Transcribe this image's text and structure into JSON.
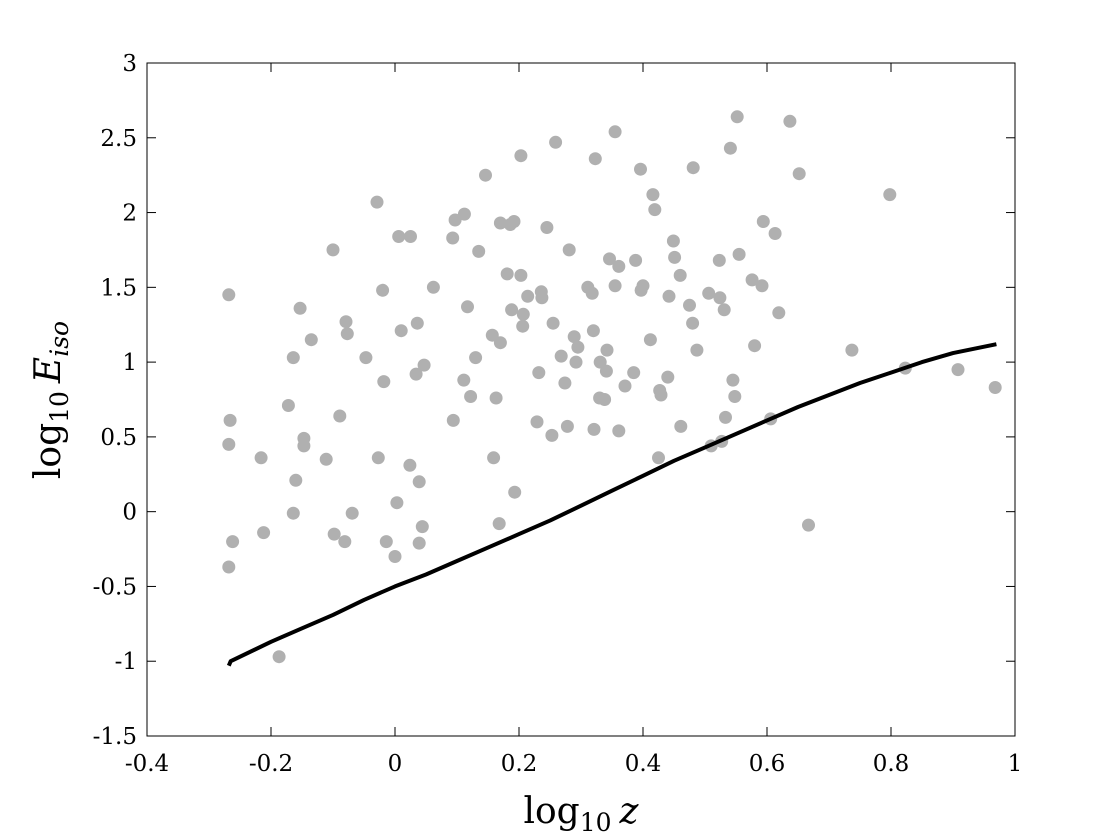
{
  "chart_data": {
    "type": "scatter",
    "xlabel": {
      "base": "log",
      "sub": "10",
      "var": "z"
    },
    "ylabel": {
      "base": "log",
      "sub": "10",
      "var": "E",
      "var_sub": "iso"
    },
    "xlim": [
      -0.4,
      1.0
    ],
    "ylim": [
      -1.5,
      3.0
    ],
    "x_ticks": [
      -0.4,
      -0.2,
      0,
      0.2,
      0.4,
      0.6,
      0.8,
      1.0
    ],
    "x_tick_labels": [
      "-0.4",
      "-0.2",
      "0",
      "0.2",
      "0.4",
      "0.6",
      "0.8",
      "1"
    ],
    "y_ticks": [
      -1.5,
      -1.0,
      -0.5,
      0,
      0.5,
      1.0,
      1.5,
      2.0,
      2.5,
      3.0
    ],
    "y_tick_labels": [
      "-1.5",
      "-1",
      "-0.5",
      "0",
      "0.5",
      "1",
      "1.5",
      "2",
      "2.5",
      "3"
    ],
    "grid": false,
    "box": true,
    "marker_color": "#b0b0b0",
    "line_color": "#000000",
    "series": [
      {
        "kind": "scatter",
        "points": [
          [
            -0.268,
            1.45
          ],
          [
            -0.266,
            0.61
          ],
          [
            -0.268,
            0.45
          ],
          [
            -0.262,
            -0.2
          ],
          [
            -0.268,
            -0.37
          ],
          [
            -0.216,
            0.36
          ],
          [
            -0.212,
            -0.14
          ],
          [
            -0.187,
            -0.97
          ],
          [
            -0.172,
            0.71
          ],
          [
            -0.164,
            1.03
          ],
          [
            -0.16,
            0.21
          ],
          [
            -0.164,
            -0.01
          ],
          [
            -0.153,
            1.36
          ],
          [
            -0.147,
            0.49
          ],
          [
            -0.147,
            0.44
          ],
          [
            -0.135,
            1.15
          ],
          [
            -0.111,
            0.35
          ],
          [
            -0.1,
            1.75
          ],
          [
            -0.098,
            -0.15
          ],
          [
            -0.089,
            0.64
          ],
          [
            -0.079,
            1.27
          ],
          [
            -0.077,
            1.19
          ],
          [
            -0.081,
            -0.2
          ],
          [
            -0.069,
            -0.01
          ],
          [
            -0.047,
            1.03
          ],
          [
            -0.029,
            2.07
          ],
          [
            -0.027,
            0.36
          ],
          [
            -0.02,
            1.48
          ],
          [
            -0.018,
            0.87
          ],
          [
            -0.014,
            -0.2
          ],
          [
            0.0,
            -0.3
          ],
          [
            0.003,
            0.06
          ],
          [
            0.006,
            1.84
          ],
          [
            0.01,
            1.21
          ],
          [
            0.025,
            1.84
          ],
          [
            0.024,
            0.31
          ],
          [
            0.034,
            0.92
          ],
          [
            0.036,
            1.26
          ],
          [
            0.039,
            0.2
          ],
          [
            0.039,
            -0.21
          ],
          [
            0.044,
            -0.1
          ],
          [
            0.047,
            0.98
          ],
          [
            0.062,
            1.5
          ],
          [
            0.093,
            1.83
          ],
          [
            0.094,
            0.61
          ],
          [
            0.097,
            1.95
          ],
          [
            0.111,
            0.88
          ],
          [
            0.112,
            1.99
          ],
          [
            0.117,
            1.37
          ],
          [
            0.122,
            0.77
          ],
          [
            0.13,
            1.03
          ],
          [
            0.135,
            1.74
          ],
          [
            0.146,
            2.25
          ],
          [
            0.157,
            1.18
          ],
          [
            0.159,
            0.36
          ],
          [
            0.163,
            0.76
          ],
          [
            0.17,
            1.93
          ],
          [
            0.168,
            -0.08
          ],
          [
            0.17,
            1.13
          ],
          [
            0.181,
            1.59
          ],
          [
            0.186,
            1.92
          ],
          [
            0.188,
            1.35
          ],
          [
            0.192,
            1.94
          ],
          [
            0.193,
            0.13
          ],
          [
            0.203,
            2.38
          ],
          [
            0.203,
            1.58
          ],
          [
            0.206,
            1.24
          ],
          [
            0.207,
            1.32
          ],
          [
            0.214,
            1.44
          ],
          [
            0.229,
            0.6
          ],
          [
            0.232,
            0.93
          ],
          [
            0.236,
            1.47
          ],
          [
            0.237,
            1.43
          ],
          [
            0.245,
            1.9
          ],
          [
            0.253,
            0.51
          ],
          [
            0.255,
            1.26
          ],
          [
            0.259,
            2.47
          ],
          [
            0.268,
            1.04
          ],
          [
            0.274,
            0.86
          ],
          [
            0.278,
            0.57
          ],
          [
            0.281,
            1.75
          ],
          [
            0.289,
            1.17
          ],
          [
            0.292,
            1.0
          ],
          [
            0.295,
            1.1
          ],
          [
            0.311,
            1.5
          ],
          [
            0.318,
            1.46
          ],
          [
            0.32,
            1.21
          ],
          [
            0.323,
            2.36
          ],
          [
            0.321,
            0.55
          ],
          [
            0.33,
            0.76
          ],
          [
            0.331,
            1.0
          ],
          [
            0.338,
            0.75
          ],
          [
            0.341,
            0.94
          ],
          [
            0.342,
            1.08
          ],
          [
            0.346,
            1.69
          ],
          [
            0.355,
            2.54
          ],
          [
            0.355,
            1.51
          ],
          [
            0.361,
            1.64
          ],
          [
            0.361,
            0.54
          ],
          [
            0.371,
            0.84
          ],
          [
            0.385,
            0.93
          ],
          [
            0.388,
            1.68
          ],
          [
            0.396,
            2.29
          ],
          [
            0.397,
            1.48
          ],
          [
            0.4,
            1.51
          ],
          [
            0.412,
            1.15
          ],
          [
            0.416,
            2.12
          ],
          [
            0.419,
            2.02
          ],
          [
            0.425,
            0.36
          ],
          [
            0.427,
            0.81
          ],
          [
            0.429,
            0.78
          ],
          [
            0.44,
            0.9
          ],
          [
            0.442,
            1.44
          ],
          [
            0.449,
            1.81
          ],
          [
            0.451,
            1.7
          ],
          [
            0.46,
            1.58
          ],
          [
            0.461,
            0.57
          ],
          [
            0.475,
            1.38
          ],
          [
            0.48,
            1.26
          ],
          [
            0.481,
            2.3
          ],
          [
            0.487,
            1.08
          ],
          [
            0.506,
            1.46
          ],
          [
            0.51,
            0.44
          ],
          [
            0.523,
            1.68
          ],
          [
            0.524,
            1.43
          ],
          [
            0.527,
            0.47
          ],
          [
            0.531,
            1.35
          ],
          [
            0.533,
            0.63
          ],
          [
            0.541,
            2.43
          ],
          [
            0.545,
            0.88
          ],
          [
            0.548,
            0.77
          ],
          [
            0.552,
            2.64
          ],
          [
            0.555,
            1.72
          ],
          [
            0.576,
            1.55
          ],
          [
            0.58,
            1.11
          ],
          [
            0.592,
            1.51
          ],
          [
            0.594,
            1.94
          ],
          [
            0.606,
            0.62
          ],
          [
            0.613,
            1.86
          ],
          [
            0.619,
            1.33
          ],
          [
            0.637,
            2.61
          ],
          [
            0.652,
            2.26
          ],
          [
            0.667,
            -0.09
          ],
          [
            0.737,
            1.08
          ],
          [
            0.798,
            2.12
          ],
          [
            0.823,
            0.96
          ],
          [
            0.908,
            0.95
          ],
          [
            0.968,
            0.83
          ]
        ]
      },
      {
        "kind": "line",
        "points": [
          [
            -0.268,
            -1.03
          ],
          [
            -0.265,
            -1.0
          ],
          [
            -0.2,
            -0.87
          ],
          [
            -0.15,
            -0.78
          ],
          [
            -0.1,
            -0.69
          ],
          [
            -0.05,
            -0.59
          ],
          [
            0.0,
            -0.5
          ],
          [
            0.05,
            -0.42
          ],
          [
            0.1,
            -0.33
          ],
          [
            0.15,
            -0.24
          ],
          [
            0.2,
            -0.15
          ],
          [
            0.25,
            -0.06
          ],
          [
            0.3,
            0.04
          ],
          [
            0.35,
            0.14
          ],
          [
            0.4,
            0.24
          ],
          [
            0.45,
            0.34
          ],
          [
            0.5,
            0.43
          ],
          [
            0.55,
            0.52
          ],
          [
            0.6,
            0.61
          ],
          [
            0.65,
            0.7
          ],
          [
            0.7,
            0.78
          ],
          [
            0.75,
            0.86
          ],
          [
            0.8,
            0.93
          ],
          [
            0.85,
            1.0
          ],
          [
            0.9,
            1.06
          ],
          [
            0.97,
            1.12
          ]
        ]
      }
    ]
  }
}
